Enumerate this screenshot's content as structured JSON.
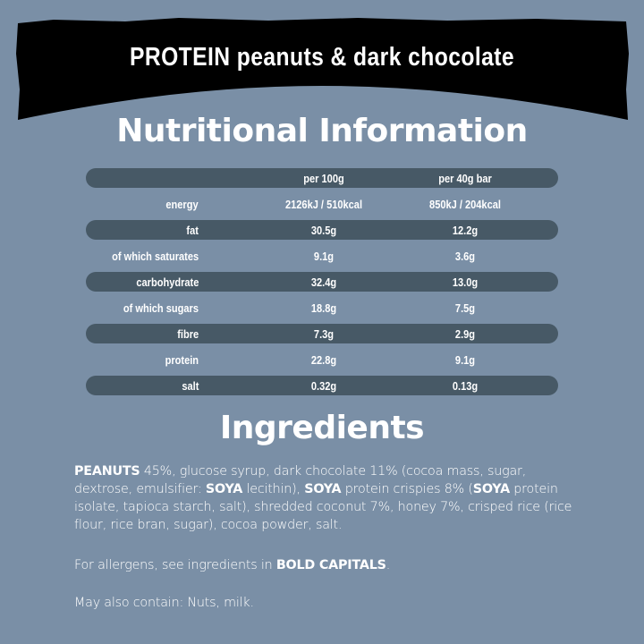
{
  "banner": {
    "title": "PROTEIN peanuts & dark chocolate",
    "color": "#000000"
  },
  "nutrition": {
    "title": "Nutritional Information",
    "headers": [
      "",
      "per 100g",
      "per 40g bar"
    ],
    "rows": [
      {
        "label": "energy",
        "per100": "2126kJ / 510kcal",
        "perBar": "850kJ / 204kcal"
      },
      {
        "label": "fat",
        "per100": "30.5g",
        "perBar": "12.2g"
      },
      {
        "label": "of which saturates",
        "per100": "9.1g",
        "perBar": "3.6g"
      },
      {
        "label": "carbohydrate",
        "per100": "32.4g",
        "perBar": "13.0g"
      },
      {
        "label": "of which sugars",
        "per100": "18.8g",
        "perBar": "7.5g"
      },
      {
        "label": "fibre",
        "per100": "7.3g",
        "perBar": "2.9g"
      },
      {
        "label": "protein",
        "per100": "22.8g",
        "perBar": "9.1g"
      },
      {
        "label": "salt",
        "per100": "0.32g",
        "perBar": "0.13g"
      }
    ]
  },
  "ingredients": {
    "title": "Ingredients",
    "parts": [
      {
        "t": "PEANUTS",
        "b": true
      },
      {
        "t": " 45%, glucose syrup, dark chocolate 11% (cocoa mass, sugar, dextrose, emulsifier: "
      },
      {
        "t": "SOYA",
        "b": true
      },
      {
        "t": " lecithin), "
      },
      {
        "t": "SOYA",
        "b": true
      },
      {
        "t": " protein crispies 8% ("
      },
      {
        "t": "SOYA",
        "b": true
      },
      {
        "t": " protein isolate, tapioca starch, salt), shredded coconut 7%, honey 7%, crisped rice (rice flour, rice bran, sugar), cocoa powder, salt."
      }
    ],
    "allergen_prefix": "For allergens, see ingredients in ",
    "allergen_bold": "BOLD CAPITALS",
    "allergen_suffix": ".",
    "may_contain": "May also contain: Nuts, milk."
  },
  "colors": {
    "background": "#7a8fa6",
    "row_dark": "#475966",
    "text": "#ffffff"
  }
}
